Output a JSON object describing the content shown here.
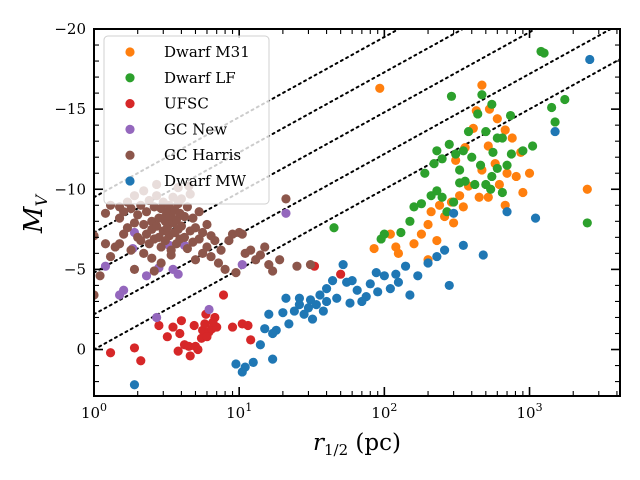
{
  "chart_data": {
    "type": "scatter",
    "xlabel_main": "r",
    "xlabel_sub": "1/2",
    "xlabel_unit": " (pc)",
    "ylabel_main": "M",
    "ylabel_sub": "V",
    "x_scale": "log",
    "xlim": [
      1,
      4200
    ],
    "ylim": [
      2.9,
      -20
    ],
    "x_ticks": [
      1,
      10,
      100,
      1000
    ],
    "x_tick_labels": [
      {
        "base": "10",
        "exp": "0"
      },
      {
        "base": "10",
        "exp": "1"
      },
      {
        "base": "10",
        "exp": "2"
      },
      {
        "base": "10",
        "exp": "3"
      }
    ],
    "y_ticks": [
      0,
      -5,
      -10,
      -15,
      -20
    ],
    "y_tick_labels": [
      "0",
      "−5",
      "−10",
      "−15",
      "−20"
    ],
    "legend_position": "upper-left",
    "reference_lines": {
      "style": "dotted",
      "slope_per_decade": -5,
      "intercepts_at_1pc": [
        0.0,
        -2.2,
        -4.8,
        -7.3,
        -9.5
      ]
    },
    "series": [
      {
        "name": "Dwarf  M31",
        "color": "#ff7f0e",
        "points": [
          [
            93,
            -16.3
          ],
          [
            470,
            -16.5
          ],
          [
            430,
            -14.9
          ],
          [
            530,
            -15.0
          ],
          [
            600,
            -14.4
          ],
          [
            680,
            -13.7
          ],
          [
            760,
            -13.2
          ],
          [
            870,
            -12.3
          ],
          [
            410,
            -13.8
          ],
          [
            360,
            -12.6
          ],
          [
            520,
            -12.7
          ],
          [
            310,
            -11.8
          ],
          [
            580,
            -11.6
          ],
          [
            700,
            -11.0
          ],
          [
            810,
            -10.8
          ],
          [
            620,
            -10.3
          ],
          [
            380,
            -10.2
          ],
          [
            450,
            -9.5
          ],
          [
            330,
            -9.6
          ],
          [
            290,
            -9.2
          ],
          [
            240,
            -9.0
          ],
          [
            210,
            -8.6
          ],
          [
            260,
            -8.3
          ],
          [
            200,
            -7.8
          ],
          [
            180,
            -7.2
          ],
          [
            230,
            -6.8
          ],
          [
            300,
            -7.9
          ],
          [
            350,
            -8.9
          ],
          [
            520,
            -9.5
          ],
          [
            680,
            -9.0
          ],
          [
            900,
            -9.8
          ],
          [
            2500,
            -10.0
          ],
          [
            120,
            -6.4
          ],
          [
            125,
            -6.0
          ],
          [
            110,
            -7.2
          ],
          [
            85,
            -6.3
          ],
          [
            160,
            -6.6
          ],
          [
            200,
            -5.6
          ],
          [
            470,
            -11.2
          ],
          [
            1000,
            -11.0
          ]
        ]
      },
      {
        "name": "Dwarf  LF",
        "color": "#2ca02c",
        "points": [
          [
            1200,
            -18.6
          ],
          [
            1260,
            -18.5
          ],
          [
            1750,
            -15.6
          ],
          [
            1420,
            -15.1
          ],
          [
            290,
            -15.8
          ],
          [
            470,
            -15.9
          ],
          [
            550,
            -15.3
          ],
          [
            440,
            -14.7
          ],
          [
            1500,
            -14.2
          ],
          [
            740,
            -14.6
          ],
          [
            380,
            -13.6
          ],
          [
            500,
            -13.6
          ],
          [
            600,
            -13.2
          ],
          [
            650,
            -13.2
          ],
          [
            230,
            -12.4
          ],
          [
            280,
            -12.8
          ],
          [
            310,
            -12.2
          ],
          [
            350,
            -12.4
          ],
          [
            400,
            -12.0
          ],
          [
            560,
            -12.3
          ],
          [
            900,
            -12.4
          ],
          [
            220,
            -11.6
          ],
          [
            250,
            -11.9
          ],
          [
            330,
            -11.2
          ],
          [
            460,
            -11.5
          ],
          [
            600,
            -11.3
          ],
          [
            190,
            -11.0
          ],
          [
            330,
            -10.4
          ],
          [
            360,
            -10.5
          ],
          [
            420,
            -10.3
          ],
          [
            500,
            -10.3
          ],
          [
            550,
            -10.8
          ],
          [
            210,
            -9.6
          ],
          [
            230,
            -9.9
          ],
          [
            250,
            -9.5
          ],
          [
            300,
            -9.2
          ],
          [
            180,
            -9.1
          ],
          [
            160,
            -8.9
          ],
          [
            150,
            -8.0
          ],
          [
            130,
            -7.3
          ],
          [
            100,
            -7.2
          ],
          [
            95,
            -6.9
          ],
          [
            45,
            -7.6
          ],
          [
            2500,
            -7.9
          ],
          [
            270,
            -8.6
          ],
          [
            650,
            -9.8
          ],
          [
            750,
            -12.2
          ],
          [
            1050,
            -12.7
          ],
          [
            700,
            -11.5
          ],
          [
            540,
            -10.0
          ]
        ]
      },
      {
        "name": "UFSC",
        "color": "#d62728",
        "points": [
          [
            1.3,
            0.2
          ],
          [
            1.9,
            -0.1
          ],
          [
            2.1,
            0.7
          ],
          [
            2.8,
            -1.5
          ],
          [
            3.5,
            -1.4
          ],
          [
            3.2,
            -0.8
          ],
          [
            3.9,
            -1.0
          ],
          [
            4.2,
            -0.3
          ],
          [
            4.5,
            -0.2
          ],
          [
            5.0,
            -0.2
          ],
          [
            5.5,
            -0.7
          ],
          [
            4.9,
            -1.5
          ],
          [
            5.6,
            -1.2
          ],
          [
            6.2,
            -1.1
          ],
          [
            6.5,
            -1.3
          ],
          [
            7.0,
            -1.4
          ],
          [
            6.8,
            -2.0
          ],
          [
            7.8,
            -3.4
          ],
          [
            9.0,
            -1.4
          ],
          [
            10.5,
            -1.6
          ],
          [
            11.5,
            -1.5
          ],
          [
            12.0,
            -0.6
          ],
          [
            5.9,
            -2.2
          ],
          [
            3.8,
            0.1
          ],
          [
            4.6,
            0.4
          ],
          [
            5.2,
            0.0
          ],
          [
            6.0,
            -0.8
          ],
          [
            4.0,
            -1.8
          ],
          [
            5.8,
            -1.6
          ],
          [
            33,
            -5.2
          ],
          [
            50,
            -4.7
          ],
          [
            6.6,
            -1.7
          ]
        ]
      },
      {
        "name": "GC New",
        "color": "#9467bd",
        "points": [
          [
            1.2,
            -5.2
          ],
          [
            1.6,
            -3.7
          ],
          [
            1.9,
            -7.3
          ],
          [
            2.3,
            -4.6
          ],
          [
            1.85,
            -6.3
          ],
          [
            2.8,
            -5.1
          ],
          [
            3.3,
            -6.5
          ],
          [
            3.5,
            -5.0
          ],
          [
            4.2,
            -6.5
          ],
          [
            6.2,
            -2.5
          ],
          [
            10.5,
            -5.3
          ],
          [
            21,
            -8.5
          ],
          [
            2.7,
            -2.0
          ],
          [
            1.5,
            -3.4
          ],
          [
            3.8,
            -4.7
          ]
        ]
      },
      {
        "name": "GC Harris",
        "color": "#8c564b",
        "points": [
          [
            1.0,
            -7.1
          ],
          [
            1.0,
            -3.4
          ],
          [
            1.1,
            -4.6
          ],
          [
            1.2,
            -6.6
          ],
          [
            1.3,
            -5.8
          ],
          [
            1.3,
            -9.0
          ],
          [
            1.4,
            -6.4
          ],
          [
            1.5,
            -6.6
          ],
          [
            1.5,
            -8.2
          ],
          [
            1.6,
            -7.2
          ],
          [
            1.6,
            -8.6
          ],
          [
            1.7,
            -9.2
          ],
          [
            1.7,
            -7.6
          ],
          [
            1.8,
            -6.2
          ],
          [
            1.8,
            -8.8
          ],
          [
            1.9,
            -7.9
          ],
          [
            1.9,
            -9.6
          ],
          [
            2.0,
            -7.0
          ],
          [
            2.0,
            -8.4
          ],
          [
            2.1,
            -6.8
          ],
          [
            2.1,
            -9.0
          ],
          [
            2.2,
            -7.8
          ],
          [
            2.2,
            -6.0
          ],
          [
            2.3,
            -8.6
          ],
          [
            2.3,
            -7.2
          ],
          [
            2.4,
            -9.3
          ],
          [
            2.4,
            -6.6
          ],
          [
            2.5,
            -8.0
          ],
          [
            2.5,
            -7.5
          ],
          [
            2.6,
            -8.9
          ],
          [
            2.6,
            -6.9
          ],
          [
            2.7,
            -7.7
          ],
          [
            2.7,
            -9.6
          ],
          [
            2.8,
            -8.2
          ],
          [
            2.8,
            -7.0
          ],
          [
            2.9,
            -8.8
          ],
          [
            2.9,
            -6.4
          ],
          [
            3.0,
            -7.4
          ],
          [
            3.0,
            -9.2
          ],
          [
            3.1,
            -8.0
          ],
          [
            3.1,
            -6.8
          ],
          [
            3.2,
            -8.6
          ],
          [
            3.2,
            -7.6
          ],
          [
            3.3,
            -9.0
          ],
          [
            3.3,
            -7.1
          ],
          [
            3.4,
            -8.3
          ],
          [
            3.4,
            -6.2
          ],
          [
            3.5,
            -7.9
          ],
          [
            3.5,
            -9.5
          ],
          [
            3.6,
            -7.3
          ],
          [
            3.6,
            -8.7
          ],
          [
            3.7,
            -6.6
          ],
          [
            3.7,
            -8.1
          ],
          [
            3.8,
            -7.5
          ],
          [
            3.8,
            -9.1
          ],
          [
            3.9,
            -6.9
          ],
          [
            3.9,
            -8.5
          ],
          [
            4.0,
            -7.7
          ],
          [
            4.0,
            -9.4
          ],
          [
            4.2,
            -7.0
          ],
          [
            4.2,
            -8.3
          ],
          [
            4.4,
            -6.3
          ],
          [
            4.4,
            -8.9
          ],
          [
            4.6,
            -7.4
          ],
          [
            4.6,
            -9.7
          ],
          [
            4.8,
            -6.7
          ],
          [
            4.8,
            -8.2
          ],
          [
            5.0,
            -7.6
          ],
          [
            5.0,
            -5.6
          ],
          [
            5.3,
            -6.9
          ],
          [
            5.3,
            -8.6
          ],
          [
            5.6,
            -7.3
          ],
          [
            5.6,
            -6.0
          ],
          [
            6.0,
            -7.8
          ],
          [
            6.0,
            -6.4
          ],
          [
            6.4,
            -5.8
          ],
          [
            6.4,
            -7.1
          ],
          [
            6.8,
            -6.8
          ],
          [
            7.2,
            -5.4
          ],
          [
            7.5,
            -6.2
          ],
          [
            8.0,
            -5.0
          ],
          [
            8.5,
            -6.8
          ],
          [
            9.0,
            -7.2
          ],
          [
            9.5,
            -4.8
          ],
          [
            10.0,
            -7.3
          ],
          [
            10.5,
            -7.2
          ],
          [
            11,
            -6.0
          ],
          [
            12,
            -6.2
          ],
          [
            13,
            -5.6
          ],
          [
            14,
            -5.9
          ],
          [
            15,
            -6.4
          ],
          [
            16,
            -5.3
          ],
          [
            17,
            -4.9
          ],
          [
            19,
            -5.6
          ],
          [
            21,
            -9.4
          ],
          [
            25,
            -5.2
          ],
          [
            31,
            -5.3
          ],
          [
            2.5,
            -5.7
          ],
          [
            2.9,
            -5.4
          ],
          [
            3.4,
            -5.9
          ],
          [
            1.9,
            -5.0
          ],
          [
            2.6,
            -4.9
          ],
          [
            1.5,
            -8.9
          ],
          [
            2.2,
            -9.9
          ],
          [
            3.8,
            -10.1
          ],
          [
            4.5,
            -10.2
          ],
          [
            2.7,
            -10.3
          ],
          [
            3.1,
            -8.3
          ],
          [
            1.2,
            -8.5
          ]
        ]
      },
      {
        "name": "Dwarf  MW",
        "color": "#1f77b4",
        "points": [
          [
            2600,
            -18.1
          ],
          [
            1500,
            -13.6
          ],
          [
            1100,
            -8.2
          ],
          [
            480,
            -5.9
          ],
          [
            260,
            -6.2
          ],
          [
            280,
            -4.0
          ],
          [
            200,
            -5.4
          ],
          [
            170,
            -4.6
          ],
          [
            140,
            -5.2
          ],
          [
            125,
            -4.2
          ],
          [
            110,
            -3.8
          ],
          [
            100,
            -4.6
          ],
          [
            90,
            -3.6
          ],
          [
            80,
            -4.1
          ],
          [
            75,
            -3.3
          ],
          [
            65,
            -3.7
          ],
          [
            58,
            -2.9
          ],
          [
            55,
            -4.2
          ],
          [
            52,
            -5.3
          ],
          [
            47,
            -3.2
          ],
          [
            44,
            -4.3
          ],
          [
            40,
            -3.0
          ],
          [
            38,
            -2.4
          ],
          [
            36,
            -3.4
          ],
          [
            34,
            -2.8
          ],
          [
            32,
            -1.9
          ],
          [
            31,
            -3.1
          ],
          [
            30,
            -2.6
          ],
          [
            28,
            -2.2
          ],
          [
            26,
            -3.2
          ],
          [
            24,
            -2.4
          ],
          [
            22,
            -1.6
          ],
          [
            21,
            -3.2
          ],
          [
            20,
            -2.3
          ],
          [
            18,
            -1.2
          ],
          [
            17,
            -1.0
          ],
          [
            16,
            -2.2
          ],
          [
            15,
            -1.3
          ],
          [
            14,
            -0.3
          ],
          [
            12.5,
            0.8
          ],
          [
            17,
            0.6
          ],
          [
            11,
            1.1
          ],
          [
            10.5,
            1.4
          ],
          [
            9.5,
            0.9
          ],
          [
            1.9,
            2.2
          ],
          [
            120,
            -4.7
          ],
          [
            150,
            -3.4
          ],
          [
            230,
            -5.8
          ],
          [
            350,
            -6.5
          ],
          [
            700,
            -8.6
          ],
          [
            40,
            -3.8
          ],
          [
            70,
            -3.0
          ],
          [
            88,
            -4.8
          ],
          [
            60,
            -4.3
          ],
          [
            300,
            -8.5
          ],
          [
            26,
            -2.8
          ]
        ]
      }
    ]
  }
}
